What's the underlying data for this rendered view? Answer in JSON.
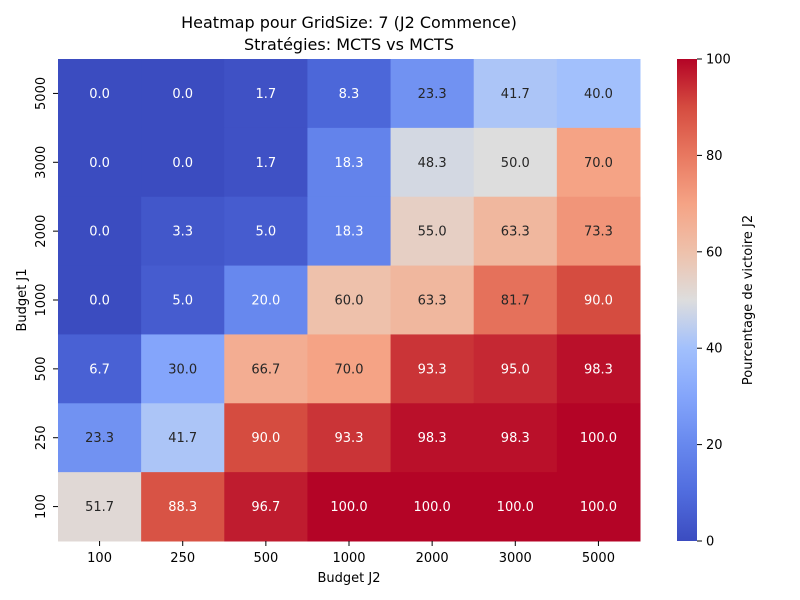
{
  "chart_data": {
    "type": "heatmap",
    "title": "Heatmap pour GridSize: 7 (J2 Commence)",
    "subtitle": "Stratégies: MCTS vs MCTS",
    "xlabel": "Budget J2",
    "ylabel": "Budget J1",
    "x_categories": [
      "100",
      "250",
      "500",
      "1000",
      "2000",
      "3000",
      "5000"
    ],
    "y_categories": [
      "5000",
      "3000",
      "2000",
      "1000",
      "500",
      "250",
      "100"
    ],
    "values": [
      [
        0.0,
        0.0,
        1.7,
        8.3,
        23.3,
        41.7,
        40.0
      ],
      [
        0.0,
        0.0,
        1.7,
        18.3,
        48.3,
        50.0,
        70.0
      ],
      [
        0.0,
        3.3,
        5.0,
        18.3,
        55.0,
        63.3,
        73.3
      ],
      [
        0.0,
        5.0,
        20.0,
        60.0,
        63.3,
        81.7,
        90.0
      ],
      [
        6.7,
        30.0,
        66.7,
        70.0,
        93.3,
        95.0,
        98.3
      ],
      [
        23.3,
        41.7,
        90.0,
        93.3,
        98.3,
        98.3,
        100.0
      ],
      [
        51.7,
        88.3,
        96.7,
        100.0,
        100.0,
        100.0,
        100.0
      ]
    ],
    "colorbar": {
      "label": "Pourcentage de victoire J2",
      "min": 0,
      "max": 100,
      "ticks": [
        "0",
        "20",
        "40",
        "60",
        "80",
        "100"
      ]
    },
    "colormap": "coolwarm",
    "colormap_low": "#3b4cc0",
    "colormap_mid": "#dddddd",
    "colormap_high": "#b40426"
  }
}
